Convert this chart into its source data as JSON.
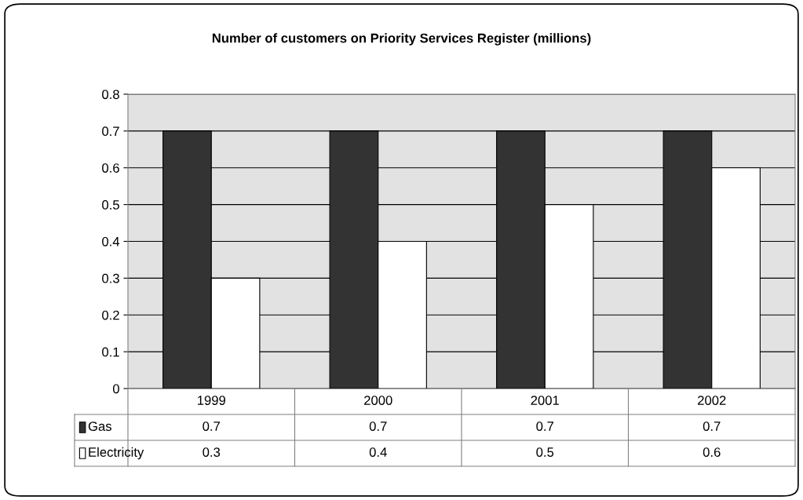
{
  "chart_data": {
    "type": "bar",
    "title": "Number of customers on Priority Services Register (millions)",
    "categories": [
      "1999",
      "2000",
      "2001",
      "2002"
    ],
    "series": [
      {
        "name": "Gas",
        "color": "#333333",
        "values": [
          0.7,
          0.7,
          0.7,
          0.7
        ]
      },
      {
        "name": "Electricity",
        "color": "#ffffff",
        "values": [
          0.3,
          0.4,
          0.5,
          0.6
        ]
      }
    ],
    "ylim": [
      0,
      0.8
    ],
    "yticks": [
      0,
      0.1,
      0.2,
      0.3,
      0.4,
      0.5,
      0.6,
      0.7,
      0.8
    ],
    "grid": "y",
    "legend": "bottom",
    "data_labels": true
  }
}
